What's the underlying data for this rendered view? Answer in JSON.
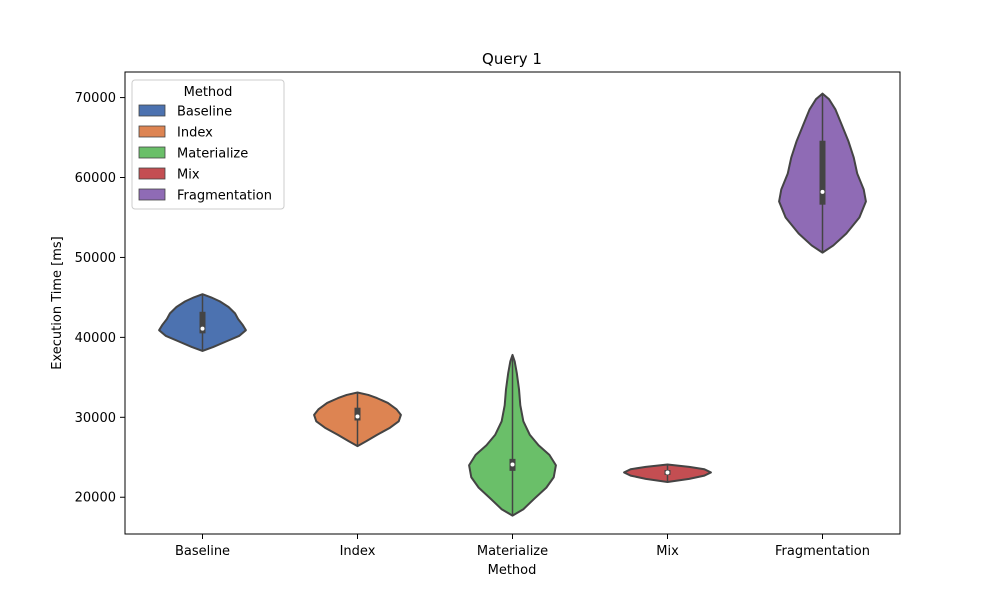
{
  "chart_data": {
    "type": "violin",
    "title": "Query 1",
    "xlabel": "Method",
    "ylabel": "Execution Time [ms]",
    "ylim": [
      15400,
      73200
    ],
    "yticks": [
      20000,
      30000,
      40000,
      50000,
      60000,
      70000
    ],
    "categories": [
      "Baseline",
      "Index",
      "Materialize",
      "Mix",
      "Fragmentation"
    ],
    "grid": false,
    "legend": {
      "title": "Method",
      "placement": "top-left",
      "entries": [
        "Baseline",
        "Index",
        "Materialize",
        "Mix",
        "Fragmentation"
      ]
    },
    "colors": [
      "#4c72b0",
      "#dd8452",
      "#6abf69",
      "#c44e52",
      "#8f6bb5"
    ],
    "series": [
      {
        "name": "Baseline",
        "min": 38300,
        "max": 45400,
        "q1": 40500,
        "q3": 43200,
        "median": 41100,
        "profile": [
          [
            38300,
            0
          ],
          [
            38800,
            0.25
          ],
          [
            39500,
            0.55
          ],
          [
            40200,
            0.85
          ],
          [
            40900,
            1.0
          ],
          [
            41600,
            0.92
          ],
          [
            42300,
            0.82
          ],
          [
            43000,
            0.75
          ],
          [
            43800,
            0.6
          ],
          [
            44500,
            0.4
          ],
          [
            45000,
            0.2
          ],
          [
            45400,
            0
          ]
        ]
      },
      {
        "name": "Index",
        "min": 26400,
        "max": 33100,
        "q1": 29600,
        "q3": 31200,
        "median": 30100,
        "profile": [
          [
            26400,
            0
          ],
          [
            27000,
            0.2
          ],
          [
            27800,
            0.45
          ],
          [
            28700,
            0.75
          ],
          [
            29500,
            0.95
          ],
          [
            30300,
            1.0
          ],
          [
            31000,
            0.9
          ],
          [
            31800,
            0.7
          ],
          [
            32400,
            0.45
          ],
          [
            32800,
            0.25
          ],
          [
            33100,
            0
          ]
        ]
      },
      {
        "name": "Materialize",
        "min": 17700,
        "max": 37800,
        "q1": 23300,
        "q3": 24800,
        "median": 24100,
        "profile": [
          [
            17700,
            0
          ],
          [
            18500,
            0.25
          ],
          [
            19800,
            0.5
          ],
          [
            21200,
            0.78
          ],
          [
            22500,
            0.95
          ],
          [
            24000,
            1.0
          ],
          [
            25300,
            0.85
          ],
          [
            26500,
            0.6
          ],
          [
            27800,
            0.4
          ],
          [
            29500,
            0.25
          ],
          [
            31500,
            0.18
          ],
          [
            33500,
            0.15
          ],
          [
            35500,
            0.1
          ],
          [
            37000,
            0.05
          ],
          [
            37800,
            0
          ]
        ]
      },
      {
        "name": "Mix",
        "min": 21900,
        "max": 24100,
        "q1": 22800,
        "q3": 23400,
        "median": 23100,
        "profile": [
          [
            21900,
            0
          ],
          [
            22300,
            0.5
          ],
          [
            22700,
            0.85
          ],
          [
            23100,
            1.0
          ],
          [
            23500,
            0.85
          ],
          [
            23800,
            0.5
          ],
          [
            24100,
            0
          ]
        ]
      },
      {
        "name": "Fragmentation",
        "min": 50600,
        "max": 70500,
        "q1": 56600,
        "q3": 64600,
        "median": 58200,
        "profile": [
          [
            50600,
            0
          ],
          [
            51500,
            0.25
          ],
          [
            53000,
            0.55
          ],
          [
            55000,
            0.85
          ],
          [
            57000,
            1.0
          ],
          [
            58500,
            0.95
          ],
          [
            60500,
            0.8
          ],
          [
            62500,
            0.72
          ],
          [
            64500,
            0.6
          ],
          [
            66500,
            0.45
          ],
          [
            68500,
            0.3
          ],
          [
            69800,
            0.15
          ],
          [
            70500,
            0
          ]
        ]
      }
    ]
  }
}
